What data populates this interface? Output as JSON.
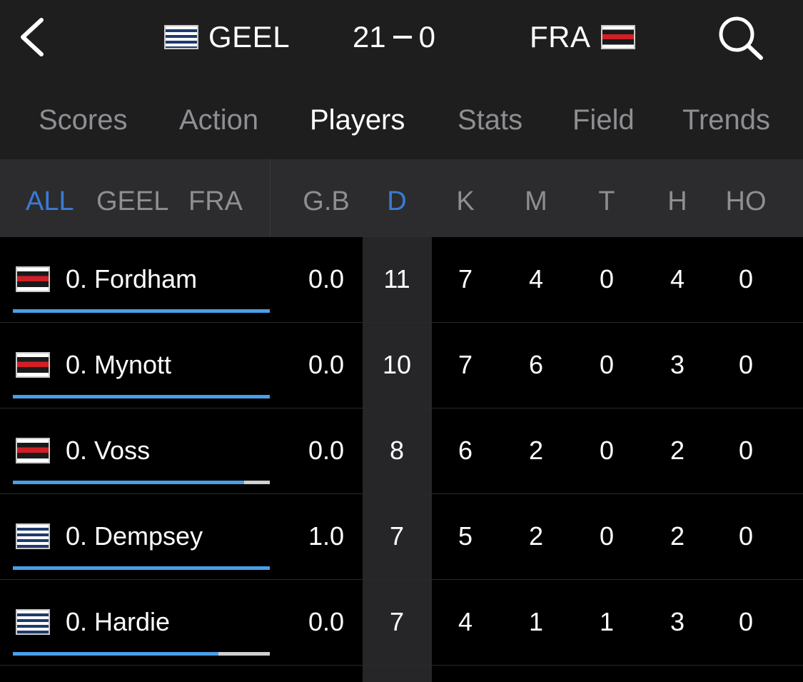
{
  "header": {
    "home_team": "GEEL",
    "away_team": "FRA",
    "home_score": "21",
    "away_score": "0"
  },
  "tabs": [
    {
      "label": "Scores",
      "active": false
    },
    {
      "label": "Action",
      "active": false
    },
    {
      "label": "Players",
      "active": true
    },
    {
      "label": "Stats",
      "active": false
    },
    {
      "label": "Field",
      "active": false
    },
    {
      "label": "Trends",
      "active": false
    }
  ],
  "filters": [
    {
      "label": "ALL",
      "active": true
    },
    {
      "label": "GEEL",
      "active": false
    },
    {
      "label": "FRA",
      "active": false
    }
  ],
  "columns": [
    {
      "label": "G.B",
      "active": false
    },
    {
      "label": "D",
      "active": true
    },
    {
      "label": "K",
      "active": false
    },
    {
      "label": "M",
      "active": false
    },
    {
      "label": "T",
      "active": false
    },
    {
      "label": "H",
      "active": false
    },
    {
      "label": "HO",
      "active": false
    }
  ],
  "players": [
    {
      "name": "0. Fordham",
      "team": "FRA",
      "bar_fraction": 1.0,
      "stats": [
        "0.0",
        "11",
        "7",
        "4",
        "0",
        "4",
        "0"
      ]
    },
    {
      "name": "0. Mynott",
      "team": "FRA",
      "bar_fraction": 1.0,
      "stats": [
        "0.0",
        "10",
        "7",
        "6",
        "0",
        "3",
        "0"
      ]
    },
    {
      "name": "0. Voss",
      "team": "FRA",
      "bar_fraction": 0.9,
      "stats": [
        "0.0",
        "8",
        "6",
        "2",
        "0",
        "2",
        "0"
      ]
    },
    {
      "name": "0. Dempsey",
      "team": "GEEL",
      "bar_fraction": 1.0,
      "stats": [
        "1.0",
        "7",
        "5",
        "2",
        "0",
        "2",
        "0"
      ]
    },
    {
      "name": "0. Hardie",
      "team": "GEEL",
      "bar_fraction": 0.8,
      "stats": [
        "0.0",
        "7",
        "4",
        "1",
        "1",
        "3",
        "0"
      ]
    }
  ],
  "colors": {
    "accent": "#3a7bd5",
    "bar_fill": "#4a9ee8",
    "bar_track": "#d0d0d0"
  },
  "icons": {
    "back": "chevron-left-icon",
    "search": "search-icon"
  }
}
